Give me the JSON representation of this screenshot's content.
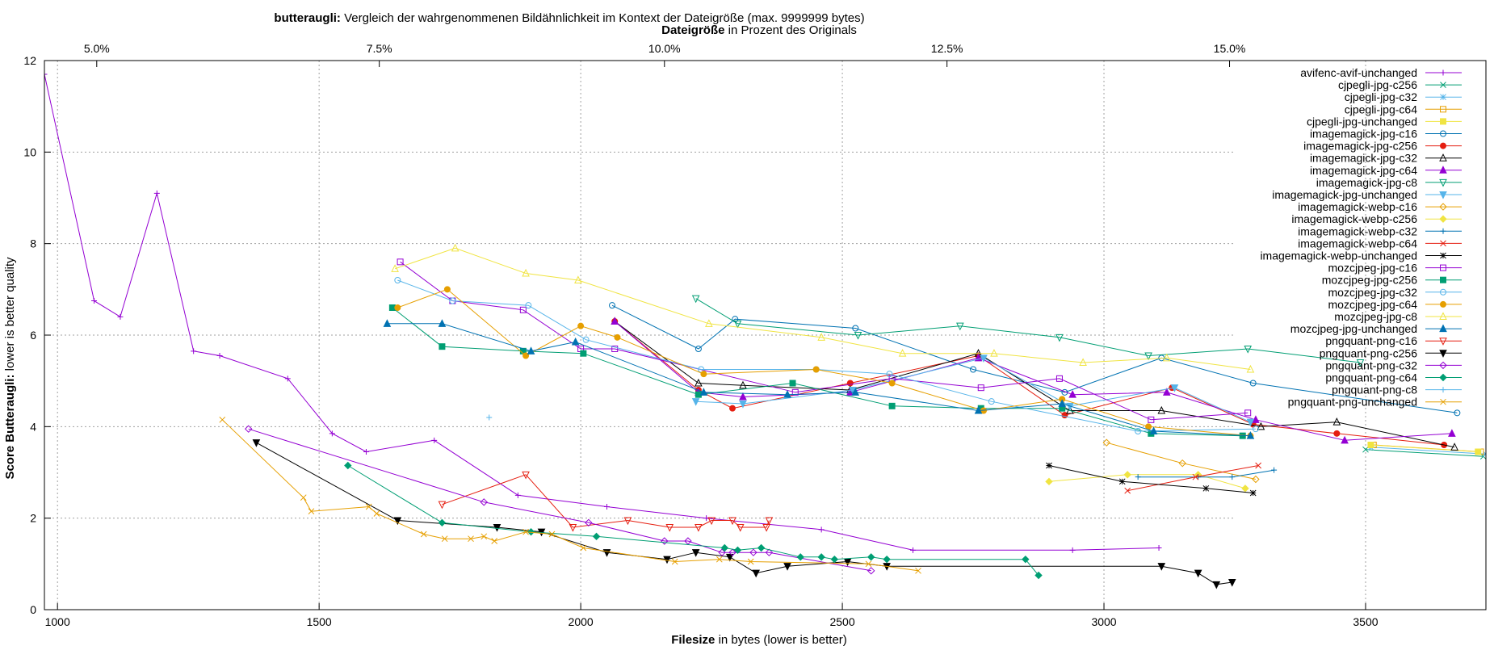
{
  "chart_data": {
    "type": "line",
    "title_bold": "butteraugli:",
    "title_rest": " Vergleich der wahrgenommenen Bildähnlichkeit im Kontext der Dateigröße (max. 9999999 bytes)",
    "x2label_bold": "Dateigröße",
    "x2label_rest": " in Prozent des Originals",
    "xlabel_bold": "Filesize",
    "xlabel_rest": " in bytes (lower is better)",
    "ylabel_bold": "Score Butteraugli:",
    "ylabel_rest": " lower is better quality",
    "xlim": [
      975,
      3730
    ],
    "ylim": [
      0,
      12
    ],
    "xticks": [
      1000,
      1500,
      2000,
      2500,
      3000,
      3500
    ],
    "xtick_labels": [
      "1000",
      "1500",
      "2000",
      "2500",
      "3000",
      "3500"
    ],
    "yticks": [
      0,
      2,
      4,
      6,
      8,
      10,
      12
    ],
    "ytick_labels": [
      "0",
      "2",
      "4",
      "6",
      "8",
      "10",
      "12"
    ],
    "x2ticks": [
      1075,
      1615,
      2160,
      2700,
      3240
    ],
    "x2tick_labels": [
      "5.0%",
      "7.5%",
      "10.0%",
      "12.5%",
      "15.0%"
    ],
    "grid": true,
    "legend_position": "top-right",
    "series": [
      {
        "name": "avifenc-avif-unchanged",
        "color": "#9400d3",
        "marker": "plus",
        "x": [
          975,
          1070,
          1120,
          1190,
          1260,
          1310,
          1440,
          1525,
          1590,
          1720,
          1880,
          2050,
          2240,
          2460,
          2635,
          2940,
          3105
        ],
        "y": [
          11.7,
          6.75,
          6.4,
          9.1,
          5.65,
          5.55,
          5.05,
          3.85,
          3.45,
          3.7,
          2.5,
          2.25,
          2.0,
          1.75,
          1.3,
          1.3,
          1.35
        ]
      },
      {
        "name": "cjpegli-jpg-c256",
        "color": "#009e73",
        "marker": "x",
        "x": [
          3500,
          3725
        ],
        "y": [
          3.5,
          3.35
        ]
      },
      {
        "name": "cjpegli-jpg-c32",
        "color": "#56b4e9",
        "marker": "star",
        "x": [
          3510,
          3730
        ],
        "y": [
          3.55,
          3.4
        ]
      },
      {
        "name": "cjpegli-jpg-c64",
        "color": "#e69f00",
        "marker": "square",
        "x": [
          3515,
          3720
        ],
        "y": [
          3.6,
          3.45
        ]
      },
      {
        "name": "cjpegli-jpg-unchanged",
        "color": "#f0e442",
        "marker": "square-filled",
        "x": [
          3510,
          3715
        ],
        "y": [
          3.6,
          3.45
        ]
      },
      {
        "name": "imagemagick-jpg-c16",
        "color": "#0072b2",
        "marker": "circle",
        "x": [
          2060,
          2225,
          2295,
          2525,
          2750,
          2925,
          3110,
          3285,
          3675
        ],
        "y": [
          6.65,
          5.7,
          6.35,
          6.15,
          5.25,
          4.75,
          5.5,
          4.95,
          4.3
        ]
      },
      {
        "name": "imagemagick-jpg-c256",
        "color": "#e51e10",
        "marker": "circle-filled",
        "x": [
          2065,
          2225,
          2290,
          2515,
          2760,
          2925,
          3130,
          3285,
          3445,
          3650
        ],
        "y": [
          6.3,
          4.8,
          4.4,
          4.95,
          5.55,
          4.25,
          4.85,
          4.05,
          3.85,
          3.6
        ]
      },
      {
        "name": "imagemagick-jpg-c32",
        "color": "#000000",
        "marker": "triangle",
        "x": [
          2065,
          2225,
          2310,
          2515,
          2760,
          2935,
          3110,
          3300,
          3445,
          3670
        ],
        "y": [
          6.3,
          4.95,
          4.9,
          4.8,
          5.6,
          4.35,
          4.35,
          4.0,
          4.1,
          3.55
        ]
      },
      {
        "name": "imagemagick-jpg-c64",
        "color": "#9400d3",
        "marker": "triangle-filled",
        "x": [
          2065,
          2225,
          2310,
          2515,
          2760,
          2940,
          3120,
          3290,
          3460,
          3665
        ],
        "y": [
          6.3,
          4.75,
          4.65,
          4.75,
          5.5,
          4.7,
          4.75,
          4.15,
          3.7,
          3.85
        ]
      },
      {
        "name": "imagemagick-jpg-c8",
        "color": "#009e73",
        "marker": "triangle-down",
        "x": [
          2220,
          2300,
          2530,
          2725,
          2915,
          3085,
          3275,
          3490
        ],
        "y": [
          6.8,
          6.25,
          6.0,
          6.2,
          5.95,
          5.55,
          5.7,
          5.4
        ]
      },
      {
        "name": "imagemagick-jpg-unchanged",
        "color": "#56b4e9",
        "marker": "triangle-down-filled",
        "x": [
          2220,
          2310,
          2520,
          2770,
          2935,
          3135,
          3280
        ],
        "y": [
          4.55,
          4.5,
          4.8,
          5.5,
          4.45,
          4.85,
          4.1
        ]
      },
      {
        "name": "imagemagick-webp-c16",
        "color": "#e69f00",
        "marker": "diamond",
        "x": [
          3005,
          3150,
          3290
        ],
        "y": [
          3.65,
          3.2,
          2.85
        ]
      },
      {
        "name": "imagemagick-webp-c256",
        "color": "#f0e442",
        "marker": "diamond-filled",
        "x": [
          2895,
          3045,
          3180,
          3270
        ],
        "y": [
          2.8,
          2.95,
          2.95,
          2.65
        ]
      },
      {
        "name": "imagemagick-webp-c32",
        "color": "#0072b2",
        "marker": "plus",
        "x": [
          3065,
          3180,
          3245,
          3325
        ],
        "y": [
          2.9,
          2.9,
          2.9,
          3.05
        ]
      },
      {
        "name": "imagemagick-webp-c64",
        "color": "#e51e10",
        "marker": "x",
        "x": [
          3045,
          3175,
          3295
        ],
        "y": [
          2.6,
          2.9,
          3.15
        ]
      },
      {
        "name": "imagemagick-webp-unchanged",
        "color": "#000000",
        "marker": "star",
        "x": [
          2895,
          3035,
          3195,
          3285
        ],
        "y": [
          3.15,
          2.8,
          2.65,
          2.55
        ]
      },
      {
        "name": "mozcjpeg-jpg-c16",
        "color": "#9400d3",
        "marker": "square",
        "x": [
          1655,
          1755,
          1890,
          2000,
          2065,
          2410,
          2595,
          2765,
          2915,
          3090,
          3275
        ],
        "y": [
          7.6,
          6.75,
          6.55,
          5.7,
          5.7,
          4.75,
          5.05,
          4.85,
          5.05,
          4.15,
          4.3
        ]
      },
      {
        "name": "mozcjpeg-jpg-c256",
        "color": "#009e73",
        "marker": "square-filled",
        "x": [
          1640,
          1735,
          1890,
          2005,
          2225,
          2405,
          2595,
          2765,
          2920,
          3090,
          3265
        ],
        "y": [
          6.6,
          5.75,
          5.65,
          5.6,
          4.7,
          4.95,
          4.45,
          4.4,
          4.4,
          3.85,
          3.8
        ]
      },
      {
        "name": "mozcjpeg-jpg-c32",
        "color": "#56b4e9",
        "marker": "circle",
        "x": [
          1650,
          1755,
          1900,
          2010,
          2230,
          2450,
          2590,
          2785,
          3065,
          3290
        ],
        "y": [
          7.2,
          6.75,
          6.65,
          5.9,
          5.25,
          5.25,
          5.15,
          4.55,
          3.9,
          3.95
        ]
      },
      {
        "name": "mozcjpeg-jpg-c64",
        "color": "#e69f00",
        "marker": "circle-filled",
        "x": [
          1650,
          1745,
          1895,
          2000,
          2070,
          2235,
          2450,
          2595,
          2770,
          2920,
          3085,
          3280
        ],
        "y": [
          6.6,
          7.0,
          5.55,
          6.2,
          5.95,
          5.15,
          5.25,
          4.95,
          4.35,
          4.6,
          4.0,
          3.8
        ]
      },
      {
        "name": "mozcjpeg-jpg-c8",
        "color": "#f0e442",
        "marker": "triangle",
        "x": [
          1645,
          1760,
          1895,
          1995,
          2245,
          2460,
          2615,
          2790,
          2960,
          3120,
          3280
        ],
        "y": [
          7.45,
          7.9,
          7.35,
          7.2,
          6.25,
          5.95,
          5.6,
          5.6,
          5.4,
          5.5,
          5.25
        ]
      },
      {
        "name": "mozcjpeg-jpg-unchanged",
        "color": "#0072b2",
        "marker": "triangle-filled",
        "x": [
          1630,
          1735,
          1905,
          1990,
          2235,
          2395,
          2525,
          2760,
          2920,
          3095,
          3280
        ],
        "y": [
          6.25,
          6.25,
          5.65,
          5.85,
          4.75,
          4.7,
          4.75,
          4.35,
          4.5,
          3.9,
          3.8
        ]
      },
      {
        "name": "pngquant-png-c16",
        "color": "#e51e10",
        "marker": "triangle-down",
        "x": [
          1735,
          1895,
          1985,
          2090,
          2170,
          2225,
          2250,
          2290,
          2305,
          2355,
          2360
        ],
        "y": [
          2.3,
          2.95,
          1.8,
          1.95,
          1.8,
          1.8,
          1.95,
          1.95,
          1.8,
          1.8,
          1.95
        ]
      },
      {
        "name": "pngquant-png-c256",
        "color": "#000000",
        "marker": "triangle-down-filled",
        "x": [
          1380,
          1650,
          1840,
          1925,
          2050,
          2165,
          2220,
          2285,
          2335,
          2395,
          2510,
          2585,
          3110,
          3180,
          3215,
          3245
        ],
        "y": [
          3.65,
          1.95,
          1.8,
          1.7,
          1.25,
          1.1,
          1.25,
          1.15,
          0.8,
          0.95,
          1.05,
          0.95,
          0.95,
          0.8,
          0.55,
          0.6
        ]
      },
      {
        "name": "pngquant-png-c32",
        "color": "#9400d3",
        "marker": "diamond",
        "x": [
          1365,
          1815,
          2015,
          2160,
          2205,
          2270,
          2290,
          2330,
          2360,
          2555
        ],
        "y": [
          3.95,
          2.35,
          1.9,
          1.5,
          1.5,
          1.25,
          1.25,
          1.25,
          1.25,
          0.85
        ]
      },
      {
        "name": "pngquant-png-c64",
        "color": "#009e73",
        "marker": "diamond-filled",
        "x": [
          1555,
          1735,
          1905,
          2030,
          2275,
          2300,
          2345,
          2420,
          2460,
          2485,
          2555,
          2585,
          2850,
          2875
        ],
        "y": [
          3.15,
          1.9,
          1.7,
          1.6,
          1.35,
          1.3,
          1.35,
          1.15,
          1.15,
          1.1,
          1.15,
          1.1,
          1.1,
          0.75
        ]
      },
      {
        "name": "pngquant-png-c8",
        "color": "#56b4e9",
        "marker": "plus",
        "x": [
          1825
        ],
        "y": [
          4.2
        ]
      },
      {
        "name": "pngquant-png-unchanged",
        "color": "#e69f00",
        "marker": "x",
        "x": [
          1315,
          1470,
          1485,
          1595,
          1610,
          1700,
          1740,
          1790,
          1815,
          1835,
          1895,
          1945,
          2005,
          2180,
          2265,
          2325,
          2550,
          2645
        ],
        "y": [
          4.15,
          2.45,
          2.15,
          2.25,
          2.1,
          1.65,
          1.55,
          1.55,
          1.6,
          1.5,
          1.7,
          1.65,
          1.35,
          1.05,
          1.1,
          1.05,
          1.0,
          0.85
        ]
      }
    ]
  }
}
